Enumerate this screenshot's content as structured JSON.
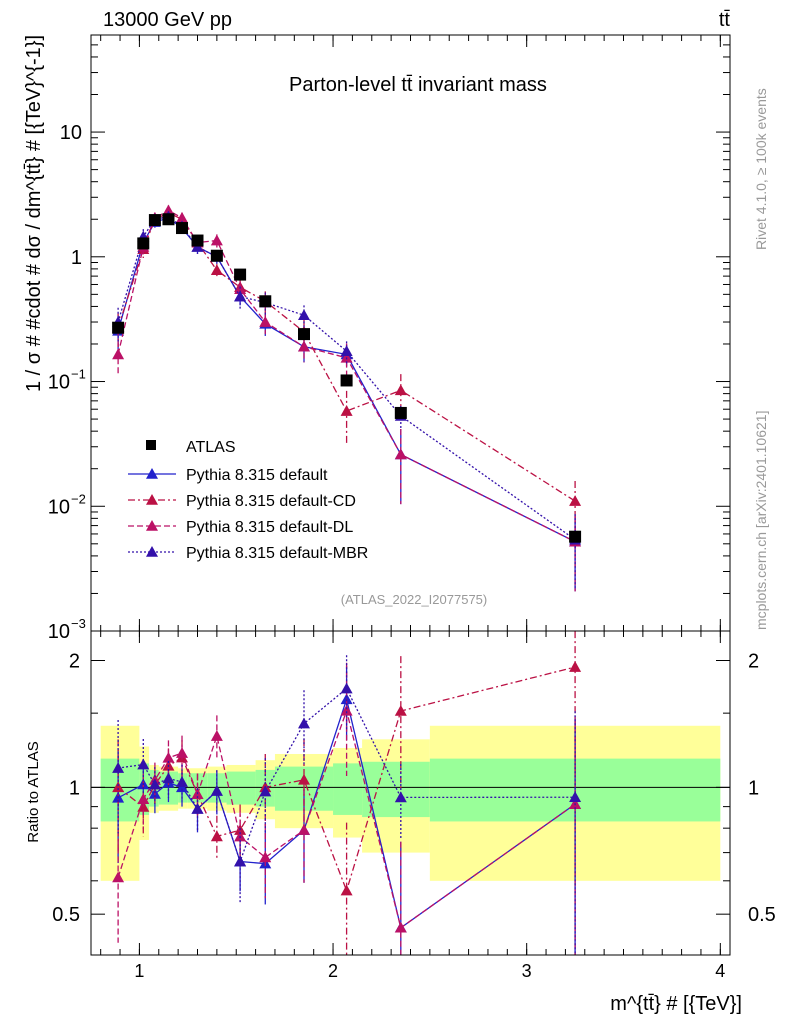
{
  "header": {
    "energy": "13000 GeV pp",
    "process": "tt̄"
  },
  "side": {
    "rivet": "Rivet 4.1.0, ≥ 100k events",
    "mcplots": "mcplots.cern.ch [arXiv:2401.10621]"
  },
  "chart_data": {
    "type": "line",
    "title": "Parton-level tt̄ invariant mass",
    "analysis": "(ATLAS_2022_I2077575)",
    "xlabel": "m^{tt̄} # [{TeV}]",
    "ylabel": "1 / σ # #cdot # dσ / dm^{tt̄} # [{TeV}^{-1}]",
    "ratio_ylabel": "Ratio to ATLAS",
    "xlim": [
      0.75,
      4.05
    ],
    "ylim": [
      0.001,
      60
    ],
    "ratio_ylim": [
      0.4,
      2.35
    ],
    "x_ticks": [
      {
        "v": 1,
        "label": "1"
      },
      {
        "v": 2,
        "label": "2"
      },
      {
        "v": 3,
        "label": "3"
      },
      {
        "v": 4,
        "label": "4"
      }
    ],
    "y_ticks": [
      {
        "v": 10,
        "label": "10"
      },
      {
        "v": 1,
        "label": "1"
      },
      {
        "v": 0.1,
        "label": "10",
        "exp": "−1"
      },
      {
        "v": 0.01,
        "label": "10",
        "exp": "−2"
      },
      {
        "v": 0.001,
        "label": "10",
        "exp": "−3"
      }
    ],
    "ratio_ticks": [
      {
        "v": 0.5,
        "label": "0.5"
      },
      {
        "v": 1,
        "label": "1"
      },
      {
        "v": 2,
        "label": "2"
      }
    ],
    "bins": [
      [
        0.8,
        1.0
      ],
      [
        1.0,
        1.05
      ],
      [
        1.05,
        1.1
      ],
      [
        1.1,
        1.2
      ],
      [
        1.2,
        1.25
      ],
      [
        1.25,
        1.35
      ],
      [
        1.35,
        1.45
      ],
      [
        1.45,
        1.6
      ],
      [
        1.6,
        1.7
      ],
      [
        1.7,
        2.0
      ],
      [
        2.0,
        2.15
      ],
      [
        2.15,
        2.5
      ],
      [
        2.5,
        4.0
      ]
    ],
    "band_green": [
      0.17,
      0.14,
      0.1,
      0.09,
      0.08,
      0.08,
      0.08,
      0.09,
      0.1,
      0.12,
      0.14,
      0.15,
      0.17
    ],
    "band_yellow": [
      0.4,
      0.25,
      0.13,
      0.12,
      0.11,
      0.11,
      0.12,
      0.13,
      0.16,
      0.2,
      0.24,
      0.3,
      0.4
    ],
    "x": [
      0.89,
      1.02,
      1.08,
      1.15,
      1.22,
      1.3,
      1.4,
      1.52,
      1.65,
      1.85,
      2.07,
      2.35,
      3.25
    ],
    "atlas": {
      "name": "ATLAS",
      "values": [
        0.27,
        1.28,
        1.97,
        2.0,
        1.7,
        1.35,
        1.02,
        0.72,
        0.44,
        0.24,
        0.102,
        0.056,
        0.0057
      ]
    },
    "series": [
      {
        "name": "Pythia 8.315 default",
        "color": "#2222cc",
        "dash": "",
        "values": [
          0.255,
          1.3,
          1.9,
          2.05,
          1.7,
          1.2,
          1.0,
          0.48,
          0.29,
          0.19,
          0.165,
          0.026,
          0.0052
        ],
        "rel_err": [
          0.3,
          0.15,
          0.1,
          0.1,
          0.1,
          0.12,
          0.12,
          0.15,
          0.2,
          0.25,
          0.2,
          0.6,
          0.6
        ]
      },
      {
        "name": "Pythia 8.315 default-CD",
        "color": "#bb1144",
        "dash": "7,3,2,3",
        "values": [
          0.27,
          1.15,
          2.0,
          2.25,
          2.0,
          1.3,
          0.78,
          0.57,
          0.44,
          0.25,
          0.058,
          0.085,
          0.011
        ],
        "rel_err": [
          0.3,
          0.15,
          0.1,
          0.1,
          0.1,
          0.12,
          0.12,
          0.15,
          0.2,
          0.25,
          0.45,
          0.35,
          0.45
        ]
      },
      {
        "name": "Pythia 8.315 default-DL",
        "color": "#bb1166",
        "dash": "6,3",
        "values": [
          0.165,
          1.2,
          2.05,
          2.35,
          2.05,
          1.3,
          1.35,
          0.55,
          0.3,
          0.19,
          0.155,
          0.026,
          0.0052
        ],
        "rel_err": [
          0.3,
          0.15,
          0.1,
          0.1,
          0.1,
          0.12,
          0.12,
          0.15,
          0.2,
          0.25,
          0.3,
          0.6,
          0.6
        ]
      },
      {
        "name": "Pythia 8.315 default-MBR",
        "color": "#3311aa",
        "dash": "2,2",
        "values": [
          0.3,
          1.45,
          2.0,
          2.1,
          1.75,
          1.2,
          1.0,
          0.48,
          0.43,
          0.34,
          0.175,
          0.053,
          0.0054
        ],
        "rel_err": [
          0.3,
          0.15,
          0.1,
          0.1,
          0.1,
          0.12,
          0.12,
          0.2,
          0.2,
          0.2,
          0.2,
          0.2,
          0.6
        ]
      }
    ]
  }
}
